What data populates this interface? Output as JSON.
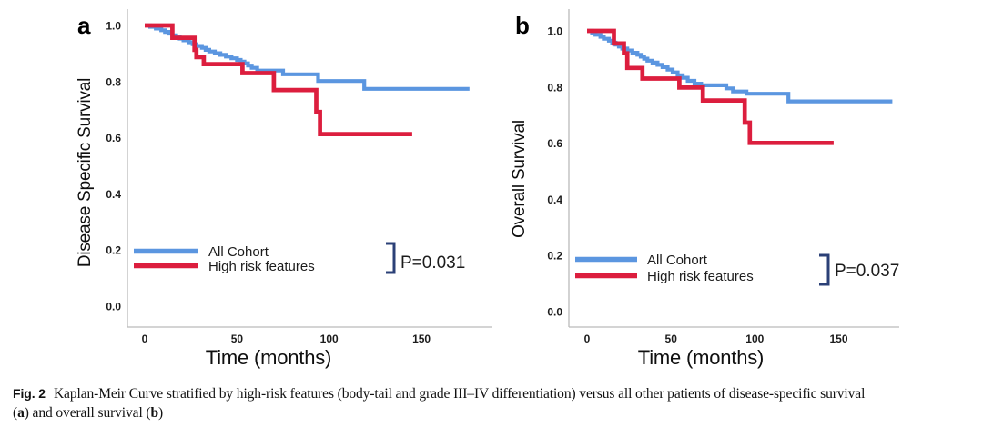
{
  "style": {
    "curve_blue": "#5B96E0",
    "curve_red": "#DC1E3E",
    "bracket_navy": "#2B4077",
    "axis_gray": "#BBBBBB"
  },
  "caption": {
    "label": "Fig. 2",
    "line1": "Kaplan-Meir Curve stratified by high-risk features (body-tail and grade III–IV differentiation) versus all other patients of disease-specific survival",
    "line2_pre": "(",
    "panel_a": "a",
    "line2_mid": ") and overall survival (",
    "panel_b": "b",
    "line2_post": ")"
  },
  "chart_data": [
    {
      "panel": "a",
      "panel_label": "a",
      "type": "line",
      "subtype": "kaplan-meier-step",
      "title": "",
      "ylabel": "Disease Specific Survival",
      "xlabel": "Time (months)",
      "p_value": "P=0.031",
      "x_ticks": [
        "0",
        "50",
        "100",
        "150"
      ],
      "y_ticks": [
        "0.0",
        "0.2",
        "0.4",
        "0.6",
        "0.8",
        "1.0"
      ],
      "xlim": [
        0,
        180
      ],
      "ylim": [
        0,
        1.0
      ],
      "grid": false,
      "legend_position": "lower-left",
      "series": [
        {
          "name": "All Cohort",
          "color": "#5B96E0",
          "steps": [
            [
              0,
              1.0
            ],
            [
              3,
              0.995
            ],
            [
              6,
              0.989
            ],
            [
              9,
              0.983
            ],
            [
              11,
              0.977
            ],
            [
              13,
              0.971
            ],
            [
              15,
              0.965
            ],
            [
              17,
              0.959
            ],
            [
              19,
              0.953
            ],
            [
              21,
              0.947
            ],
            [
              24,
              0.94
            ],
            [
              26,
              0.933
            ],
            [
              28,
              0.927
            ],
            [
              31,
              0.92
            ],
            [
              33,
              0.913
            ],
            [
              35,
              0.907
            ],
            [
              38,
              0.901
            ],
            [
              41,
              0.895
            ],
            [
              44,
              0.889
            ],
            [
              47,
              0.883
            ],
            [
              50,
              0.877
            ],
            [
              52,
              0.871
            ],
            [
              54,
              0.865
            ],
            [
              56,
              0.857
            ],
            [
              58,
              0.849
            ],
            [
              61,
              0.839
            ],
            [
              75,
              0.826
            ],
            [
              94,
              0.802
            ],
            [
              119,
              0.774
            ],
            [
              176,
              0.774
            ]
          ]
        },
        {
          "name": "High risk features",
          "color": "#DC1E3E",
          "steps": [
            [
              0,
              1.0
            ],
            [
              15,
              0.956
            ],
            [
              27,
              0.913
            ],
            [
              28,
              0.887
            ],
            [
              32,
              0.862
            ],
            [
              53,
              0.83
            ],
            [
              70,
              0.77
            ],
            [
              93,
              0.692
            ],
            [
              95,
              0.613
            ],
            [
              145,
              0.613
            ]
          ]
        }
      ]
    },
    {
      "panel": "b",
      "panel_label": "b",
      "type": "line",
      "subtype": "kaplan-meier-step",
      "title": "",
      "ylabel": "Overall Survival",
      "xlabel": "Time (months)",
      "p_value": "P=0.037",
      "x_ticks": [
        "0",
        "50",
        "100",
        "150"
      ],
      "y_ticks": [
        "0.0",
        "0.2",
        "0.4",
        "0.6",
        "0.8",
        "1.0"
      ],
      "xlim": [
        0,
        185
      ],
      "ylim": [
        0,
        1.0
      ],
      "grid": false,
      "legend_position": "lower-left",
      "series": [
        {
          "name": "All Cohort",
          "color": "#5B96E0",
          "steps": [
            [
              0,
              1.0
            ],
            [
              3,
              0.993
            ],
            [
              5,
              0.986
            ],
            [
              8,
              0.979
            ],
            [
              10,
              0.972
            ],
            [
              13,
              0.965
            ],
            [
              15,
              0.958
            ],
            [
              17,
              0.951
            ],
            [
              19,
              0.944
            ],
            [
              21,
              0.937
            ],
            [
              24,
              0.93
            ],
            [
              27,
              0.922
            ],
            [
              30,
              0.915
            ],
            [
              32,
              0.908
            ],
            [
              34,
              0.901
            ],
            [
              36,
              0.894
            ],
            [
              39,
              0.887
            ],
            [
              42,
              0.879
            ],
            [
              45,
              0.871
            ],
            [
              48,
              0.862
            ],
            [
              51,
              0.852
            ],
            [
              54,
              0.842
            ],
            [
              57,
              0.833
            ],
            [
              60,
              0.822
            ],
            [
              64,
              0.812
            ],
            [
              68,
              0.806
            ],
            [
              83,
              0.795
            ],
            [
              87,
              0.784
            ],
            [
              95,
              0.776
            ],
            [
              120,
              0.749
            ],
            [
              182,
              0.749
            ]
          ]
        },
        {
          "name": "High risk features",
          "color": "#DC1E3E",
          "steps": [
            [
              0,
              1.0
            ],
            [
              16,
              0.955
            ],
            [
              22,
              0.92
            ],
            [
              24,
              0.868
            ],
            [
              33,
              0.83
            ],
            [
              55,
              0.798
            ],
            [
              69,
              0.752
            ],
            [
              94,
              0.673
            ],
            [
              97,
              0.601
            ],
            [
              147,
              0.601
            ]
          ]
        }
      ]
    }
  ]
}
